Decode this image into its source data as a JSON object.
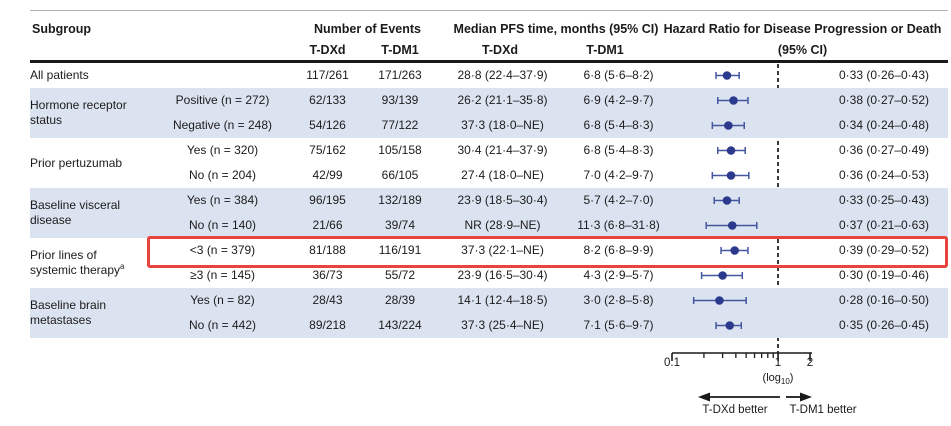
{
  "header": {
    "col_subgroup": "Subgroup",
    "col_events": "Number of Events",
    "col_pfs": "Median PFS time, months (95% CI)",
    "col_hr_line1": "Hazard Ratio for Disease Progression or Death",
    "col_hr_line2": "(95% CI)",
    "sub_tdxd_events": "T-DXd",
    "sub_tdm1_events": "T-DM1",
    "sub_tdxd_pfs": "T-DXd",
    "sub_tdm1_pfs": "T-DM1"
  },
  "groups": [
    {
      "label": "All patients",
      "rows": [
        {
          "name": "",
          "ev_tdxd": "117/261",
          "ev_tdm1": "171/263",
          "pfs_tdxd": "28·8 (22·4–37·9)",
          "pfs_tdm1": "6·8 (5·6–8·2)",
          "hr_text": "0·33 (0·26–0·43)"
        }
      ]
    },
    {
      "label": "Hormone receptor status",
      "rows": [
        {
          "name": "Positive (n = 272)",
          "ev_tdxd": "62/133",
          "ev_tdm1": "93/139",
          "pfs_tdxd": "26·2 (21·1–35·8)",
          "pfs_tdm1": "6·9 (4·2–9·7)",
          "hr_text": "0·38 (0·27–0·52)"
        },
        {
          "name": "Negative (n = 248)",
          "ev_tdxd": "54/126",
          "ev_tdm1": "77/122",
          "pfs_tdxd": "37·3 (18·0–NE)",
          "pfs_tdm1": "6·8 (5·4–8·3)",
          "hr_text": "0·34 (0·24–0·48)"
        }
      ]
    },
    {
      "label": "Prior pertuzumab",
      "rows": [
        {
          "name": "Yes (n = 320)",
          "ev_tdxd": "75/162",
          "ev_tdm1": "105/158",
          "pfs_tdxd": "30·4 (21·4–37·9)",
          "pfs_tdm1": "6·8 (5·4–8·3)",
          "hr_text": "0·36 (0·27–0·49)"
        },
        {
          "name": "No (n = 204)",
          "ev_tdxd": "42/99",
          "ev_tdm1": "66/105",
          "pfs_tdxd": "27·4 (18·0–NE)",
          "pfs_tdm1": "7·0 (4·2–9·7)",
          "hr_text": "0·36 (0·24–0·53)"
        }
      ]
    },
    {
      "label": "Baseline visceral disease",
      "rows": [
        {
          "name": "Yes (n = 384)",
          "ev_tdxd": "96/195",
          "ev_tdm1": "132/189",
          "pfs_tdxd": "23·9 (18·5–30·4)",
          "pfs_tdm1": "5·7 (4·2–7·0)",
          "hr_text": "0·33 (0·25–0·43)"
        },
        {
          "name": "No (n = 140)",
          "ev_tdxd": "21/66",
          "ev_tdm1": "39/74",
          "pfs_tdxd": "NR (28·9–NE)",
          "pfs_tdm1": "11·3 (6·8–31·8)",
          "hr_text": "0·37 (0·21–0·63)"
        }
      ]
    },
    {
      "label": "Prior lines of systemic therapy",
      "footnote": "a",
      "rows": [
        {
          "name": "<3 (n = 379)",
          "ev_tdxd": "81/188",
          "ev_tdm1": "116/191",
          "pfs_tdxd": "37·3 (22·1–NE)",
          "pfs_tdm1": "8·2 (6·8–9·9)",
          "hr_text": "0·39 (0·29–0·52)"
        },
        {
          "name": "≥3 (n = 145)",
          "ev_tdxd": "36/73",
          "ev_tdm1": "55/72",
          "pfs_tdxd": "23·9 (16·5–30·4)",
          "pfs_tdm1": "4·3 (2·9–5·7)",
          "hr_text": "0·30 (0·19–0·46)"
        }
      ]
    },
    {
      "label": "Baseline brain metastases",
      "rows": [
        {
          "name": "Yes (n = 82)",
          "ev_tdxd": "28/43",
          "ev_tdm1": "28/39",
          "pfs_tdxd": "14·1 (12·4–18·5)",
          "pfs_tdm1": "3·0 (2·8–5·8)",
          "hr_text": "0·28 (0·16–0·50)"
        },
        {
          "name": "No (n = 442)",
          "ev_tdxd": "89/218",
          "ev_tdm1": "143/224",
          "pfs_tdxd": "37·3 (25·4–NE)",
          "pfs_tdm1": "7·1 (5·6–9·7)",
          "hr_text": "0·35 (0·26–0·45)"
        }
      ]
    }
  ],
  "chart_data": {
    "type": "scatter",
    "subtype": "forest-plot",
    "x_scale": "log10",
    "x_range": [
      0.1,
      2
    ],
    "reference_line": 1,
    "rows": [
      {
        "subgroup": "All patients",
        "hr": 0.33,
        "ci_low": 0.26,
        "ci_high": 0.43
      },
      {
        "subgroup": "Hormone receptor status: Positive (n=272)",
        "hr": 0.38,
        "ci_low": 0.27,
        "ci_high": 0.52
      },
      {
        "subgroup": "Hormone receptor status: Negative (n=248)",
        "hr": 0.34,
        "ci_low": 0.24,
        "ci_high": 0.48
      },
      {
        "subgroup": "Prior pertuzumab: Yes (n=320)",
        "hr": 0.36,
        "ci_low": 0.27,
        "ci_high": 0.49
      },
      {
        "subgroup": "Prior pertuzumab: No (n=204)",
        "hr": 0.36,
        "ci_low": 0.24,
        "ci_high": 0.53
      },
      {
        "subgroup": "Baseline visceral disease: Yes (n=384)",
        "hr": 0.33,
        "ci_low": 0.25,
        "ci_high": 0.43
      },
      {
        "subgroup": "Baseline visceral disease: No (n=140)",
        "hr": 0.37,
        "ci_low": 0.21,
        "ci_high": 0.63
      },
      {
        "subgroup": "Prior lines of systemic therapy: <3 (n=379)",
        "hr": 0.39,
        "ci_low": 0.29,
        "ci_high": 0.52
      },
      {
        "subgroup": "Prior lines of systemic therapy: ≥3 (n=145)",
        "hr": 0.3,
        "ci_low": 0.19,
        "ci_high": 0.46
      },
      {
        "subgroup": "Baseline brain metastases: Yes (n=82)",
        "hr": 0.28,
        "ci_low": 0.16,
        "ci_high": 0.5
      },
      {
        "subgroup": "Baseline brain metastases: No (n=442)",
        "hr": 0.35,
        "ci_low": 0.26,
        "ci_high": 0.45
      }
    ]
  },
  "axis": {
    "tick_labels": [
      "0.1",
      "1",
      "2"
    ],
    "tick_values": [
      0.1,
      1,
      2
    ],
    "minor_ticks": [
      0.2,
      0.3,
      0.4,
      0.5,
      0.6,
      0.7,
      0.8,
      0.9
    ],
    "scale_prefix": "(log",
    "scale_sub": "10",
    "scale_suffix": ")",
    "left_arrow_label": "T-DXd better",
    "right_arrow_label": "T-DM1 better"
  },
  "highlight": {
    "target_row": "<3 (n = 379)",
    "color": "#e8433c"
  },
  "colors": {
    "marker": "#2b3a8c",
    "whisker": "#44569f",
    "row_shade": "#dce3f0",
    "axis": "#1a1a1a"
  }
}
